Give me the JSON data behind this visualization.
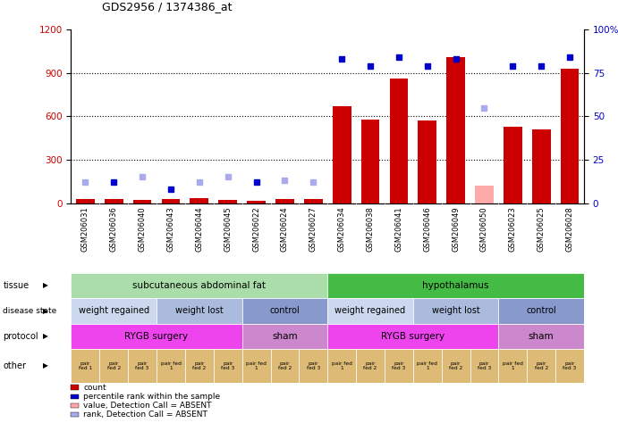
{
  "title": "GDS2956 / 1374386_at",
  "samples": [
    "GSM206031",
    "GSM206036",
    "GSM206040",
    "GSM206043",
    "GSM206044",
    "GSM206045",
    "GSM206022",
    "GSM206024",
    "GSM206027",
    "GSM206034",
    "GSM206038",
    "GSM206041",
    "GSM206046",
    "GSM206049",
    "GSM206050",
    "GSM206023",
    "GSM206025",
    "GSM206028"
  ],
  "count_values": [
    30,
    25,
    20,
    30,
    35,
    20,
    15,
    25,
    30,
    670,
    580,
    860,
    570,
    1010,
    120,
    530,
    510,
    930
  ],
  "count_absent": [
    false,
    false,
    false,
    false,
    false,
    false,
    false,
    false,
    false,
    false,
    false,
    false,
    false,
    false,
    true,
    false,
    false,
    false
  ],
  "percentile_values": [
    12,
    12,
    15,
    8,
    12,
    15,
    12,
    13,
    12,
    83,
    79,
    84,
    79,
    83,
    55,
    79,
    79,
    84
  ],
  "percentile_absent": [
    true,
    false,
    true,
    false,
    true,
    true,
    false,
    true,
    true,
    false,
    false,
    false,
    false,
    false,
    true,
    false,
    false,
    false
  ],
  "ylim_left": [
    0,
    1200
  ],
  "ylim_right": [
    0,
    100
  ],
  "yticks_left": [
    0,
    300,
    600,
    900,
    1200
  ],
  "yticks_right": [
    0,
    25,
    50,
    75,
    100
  ],
  "ylabel_left_color": "#cc0000",
  "ylabel_right_color": "#0000cc",
  "bar_color_normal": "#cc0000",
  "bar_color_absent": "#ffaaaa",
  "dot_color_normal": "#0000cc",
  "dot_color_absent": "#aaaaee",
  "tissue_row": {
    "label": "tissue",
    "segments": [
      {
        "text": "subcutaneous abdominal fat",
        "start": 0,
        "end": 9,
        "color": "#aaddaa"
      },
      {
        "text": "hypothalamus",
        "start": 9,
        "end": 18,
        "color": "#44bb44"
      }
    ]
  },
  "disease_state_row": {
    "label": "disease state",
    "segments": [
      {
        "text": "weight regained",
        "start": 0,
        "end": 3,
        "color": "#ccd8ee"
      },
      {
        "text": "weight lost",
        "start": 3,
        "end": 6,
        "color": "#aabbdd"
      },
      {
        "text": "control",
        "start": 6,
        "end": 9,
        "color": "#8899cc"
      },
      {
        "text": "weight regained",
        "start": 9,
        "end": 12,
        "color": "#ccd8ee"
      },
      {
        "text": "weight lost",
        "start": 12,
        "end": 15,
        "color": "#aabbdd"
      },
      {
        "text": "control",
        "start": 15,
        "end": 18,
        "color": "#8899cc"
      }
    ]
  },
  "protocol_row": {
    "label": "protocol",
    "segments": [
      {
        "text": "RYGB surgery",
        "start": 0,
        "end": 6,
        "color": "#ee44ee"
      },
      {
        "text": "sham",
        "start": 6,
        "end": 9,
        "color": "#cc88cc"
      },
      {
        "text": "RYGB surgery",
        "start": 9,
        "end": 15,
        "color": "#ee44ee"
      },
      {
        "text": "sham",
        "start": 15,
        "end": 18,
        "color": "#cc88cc"
      }
    ]
  },
  "other_row": {
    "label": "other",
    "cells": [
      "pair\nfed 1",
      "pair\nfed 2",
      "pair\nfed 3",
      "pair fed\n1",
      "pair\nfed 2",
      "pair\nfed 3",
      "pair fed\n1",
      "pair\nfed 2",
      "pair\nfed 3",
      "pair fed\n1",
      "pair\nfed 2",
      "pair\nfed 3",
      "pair fed\n1",
      "pair\nfed 2",
      "pair\nfed 3",
      "pair fed\n1",
      "pair\nfed 2",
      "pair\nfed 3"
    ],
    "color": "#ddbb77"
  },
  "legend": [
    {
      "color": "#cc0000",
      "label": "count"
    },
    {
      "color": "#0000cc",
      "label": "percentile rank within the sample"
    },
    {
      "color": "#ffaaaa",
      "label": "value, Detection Call = ABSENT"
    },
    {
      "color": "#aaaaee",
      "label": "rank, Detection Call = ABSENT"
    }
  ]
}
